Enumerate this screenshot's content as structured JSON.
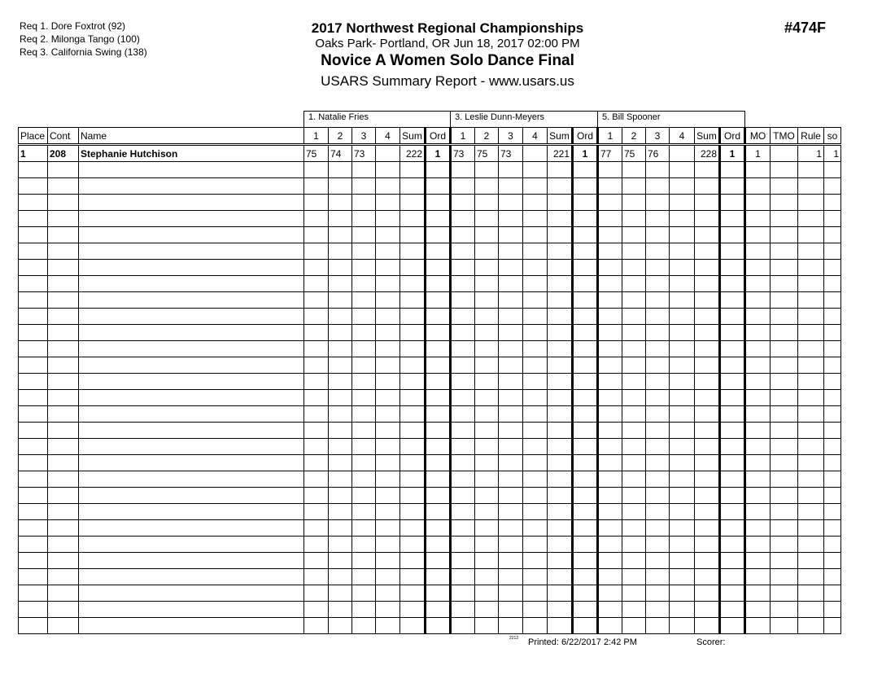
{
  "requirements": [
    "Req  1.  Dore Foxtrot (92)",
    "Req  2.  Milonga Tango (100)",
    "Req  3.  California Swing (138)"
  ],
  "header": {
    "title": "2017 Northwest Regional Championships",
    "location": "Oaks Park- Portland, OR  Jun 18, 2017  02:00 PM",
    "event": "Novice A Women Solo Dance Final",
    "report": "USARS Summary Report - www.usars.us",
    "event_number": "#474F"
  },
  "judges": [
    "1.  Natalie Fries",
    "3.  Leslie Dunn-Meyers",
    "5.  Bill Spooner"
  ],
  "columns": {
    "place": "Place",
    "cont": "Cont",
    "name": "Name",
    "scores": [
      "1",
      "2",
      "3",
      "4",
      "Sum",
      "Ord"
    ],
    "mo": "MO",
    "tmo": "TMO",
    "rule": "Rule",
    "so": "so"
  },
  "results": [
    {
      "place": "1",
      "cont": "208",
      "name": "Stephanie Hutchison",
      "judges": [
        [
          "75",
          "74",
          "73",
          "",
          "222",
          "1"
        ],
        [
          "73",
          "75",
          "73",
          "",
          "221",
          "1"
        ],
        [
          "77",
          "75",
          "76",
          "",
          "228",
          "1"
        ]
      ],
      "mo": "1",
      "tmo": "",
      "rule": "1",
      "so": "1"
    }
  ],
  "footer": {
    "version": "2212",
    "printed": "Printed:  6/22/2017  2:42 PM",
    "scorer": "Scorer:"
  }
}
